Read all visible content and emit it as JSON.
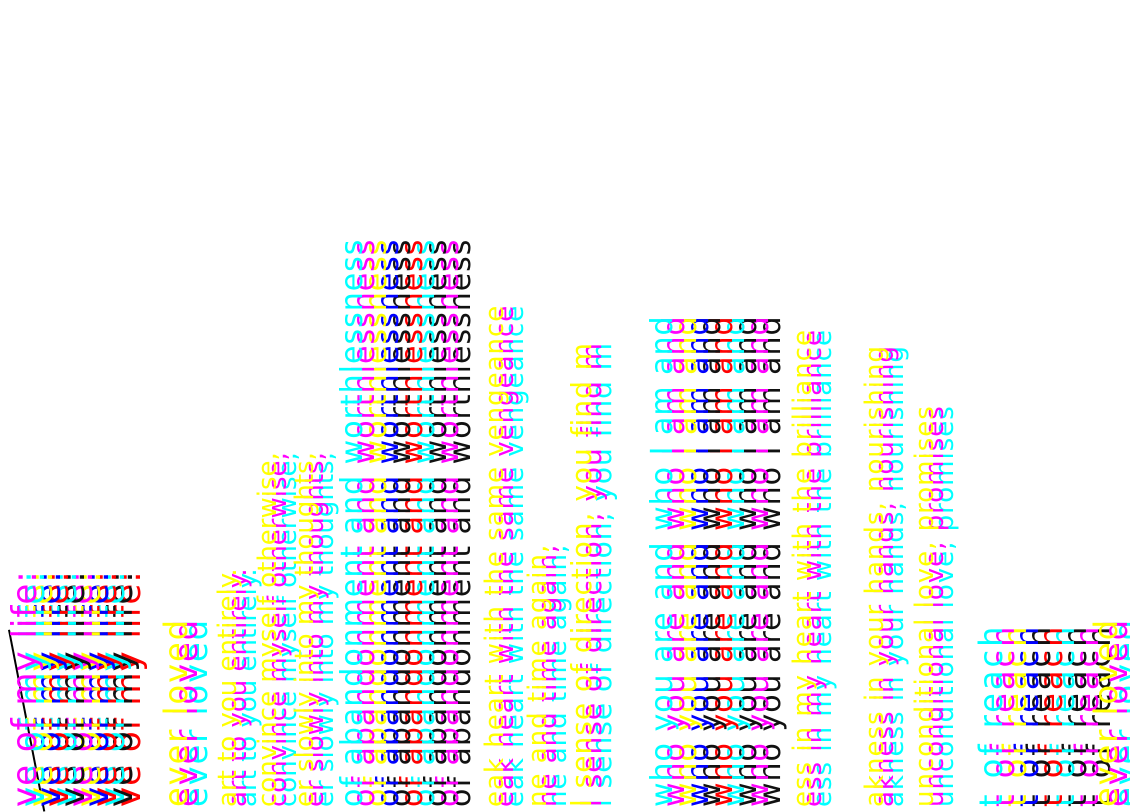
{
  "lines": [
    "ve of my life:",
    "ever loved",
    "art to you entirely.",
    "convince myself otherwise,",
    "er slowly into my thoughts,",
    "of abandonment and worthlessness",
    "eak heart with the same vengeance",
    "ne and time again,",
    "l sense of direction, you find m",
    "who you are and who I am and",
    "ess in my heart with the brilliance",
    "akness in your hands, nourishing",
    "unconditional love, promises",
    "t of reach",
    "ever loved"
  ]
}
